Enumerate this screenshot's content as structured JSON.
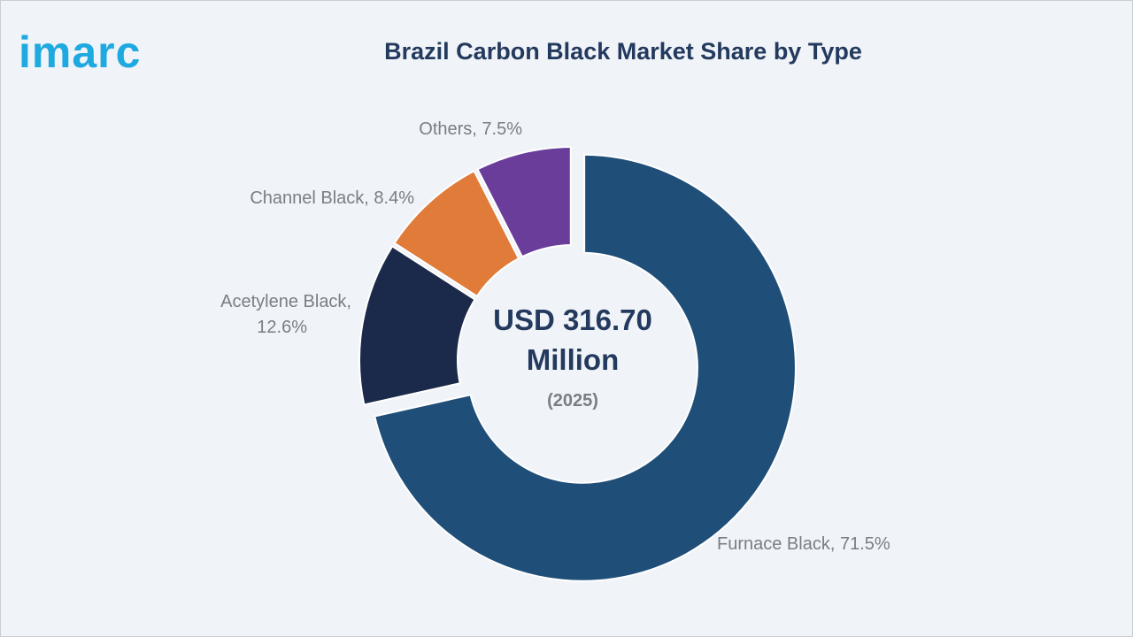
{
  "brand": {
    "logo_text": "imarc",
    "logo_color": "#1fa9e1"
  },
  "chart_data": {
    "type": "pie",
    "title": "Brazil Carbon Black Market Share by Type",
    "center_text": [
      "USD 316.70",
      "Million"
    ],
    "center_subtext": "(2025)",
    "slices": [
      {
        "name": "Furnace Black",
        "value": 71.5,
        "label": "Furnace Black, 71.5%",
        "color": "#1f4e79"
      },
      {
        "name": "Acetylene Black",
        "value": 12.6,
        "label": [
          "Acetylene Black,",
          "12.6%"
        ],
        "color": "#1b2a4a"
      },
      {
        "name": "Channel Black",
        "value": 8.4,
        "label": "Channel Black, 8.4%",
        "color": "#e07b39"
      },
      {
        "name": "Others",
        "value": 7.5,
        "label": "Others, 7.5%",
        "color": "#6a3d9a"
      }
    ],
    "exploded": "Furnace Black",
    "legend": "none"
  }
}
